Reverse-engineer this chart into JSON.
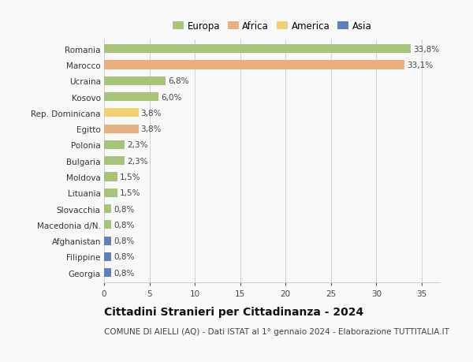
{
  "countries": [
    "Romania",
    "Marocco",
    "Ucraina",
    "Kosovo",
    "Rep. Dominicana",
    "Egitto",
    "Polonia",
    "Bulgaria",
    "Moldova",
    "Lituania",
    "Slovacchia",
    "Macedonia d/N.",
    "Afghanistan",
    "Filippine",
    "Georgia"
  ],
  "values": [
    33.8,
    33.1,
    6.8,
    6.0,
    3.8,
    3.8,
    2.3,
    2.3,
    1.5,
    1.5,
    0.8,
    0.8,
    0.8,
    0.8,
    0.8
  ],
  "labels": [
    "33,8%",
    "33,1%",
    "6,8%",
    "6,0%",
    "3,8%",
    "3,8%",
    "2,3%",
    "2,3%",
    "1,5%",
    "1,5%",
    "0,8%",
    "0,8%",
    "0,8%",
    "0,8%",
    "0,8%"
  ],
  "colors": [
    "#a8c47a",
    "#e8b080",
    "#a8c47a",
    "#a8c47a",
    "#f0d070",
    "#e8b080",
    "#a8c47a",
    "#a8c47a",
    "#a8c47a",
    "#a8c47a",
    "#a8c47a",
    "#a8c47a",
    "#6080b8",
    "#6080b8",
    "#6080b8"
  ],
  "legend_labels": [
    "Europa",
    "Africa",
    "America",
    "Asia"
  ],
  "legend_colors": [
    "#a8c47a",
    "#e8b080",
    "#f0d070",
    "#6080b8"
  ],
  "title": "Cittadini Stranieri per Cittadinanza - 2024",
  "subtitle": "COMUNE DI AIELLI (AQ) - Dati ISTAT al 1° gennaio 2024 - Elaborazione TUTTITALIA.IT",
  "xlim": [
    0,
    37
  ],
  "xticks": [
    0,
    5,
    10,
    15,
    20,
    25,
    30,
    35
  ],
  "background_color": "#f9f9f9",
  "grid_color": "#d0d0d0",
  "bar_height": 0.55,
  "label_fontsize": 7.5,
  "tick_fontsize": 7.5,
  "title_fontsize": 10,
  "subtitle_fontsize": 7.5,
  "legend_fontsize": 8.5
}
